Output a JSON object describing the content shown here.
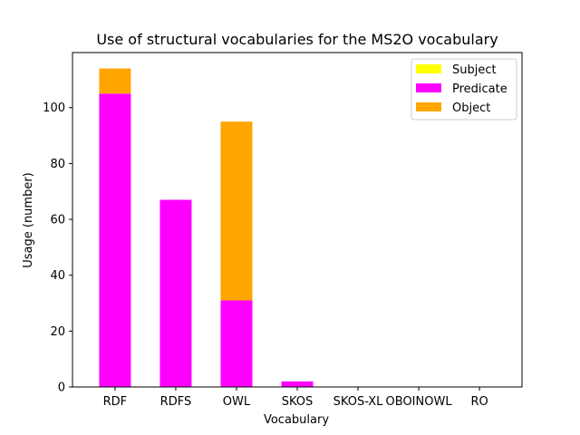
{
  "chart_data": {
    "type": "bar",
    "stacked": true,
    "title": "Use of structural vocabularies for the MS2O vocabulary",
    "xlabel": "Vocabulary",
    "ylabel": "Usage (number)",
    "categories": [
      "RDF",
      "RDFS",
      "OWL",
      "SKOS",
      "SKOS-XL",
      "OBOINOWL",
      "RO"
    ],
    "series": [
      {
        "name": "Subject",
        "color": "#ffff00",
        "values": [
          0,
          0,
          0,
          0,
          0,
          0,
          0
        ]
      },
      {
        "name": "Predicate",
        "color": "#ff00ff",
        "values": [
          105,
          67,
          31,
          2,
          0,
          0,
          0
        ]
      },
      {
        "name": "Object",
        "color": "#ffa500",
        "values": [
          9,
          0,
          64,
          0,
          0,
          0,
          0
        ]
      }
    ],
    "ylim": [
      0,
      119.7
    ],
    "yticks": [
      0,
      20,
      40,
      60,
      80,
      100
    ],
    "legend_position": "top-right",
    "grid": false
  }
}
